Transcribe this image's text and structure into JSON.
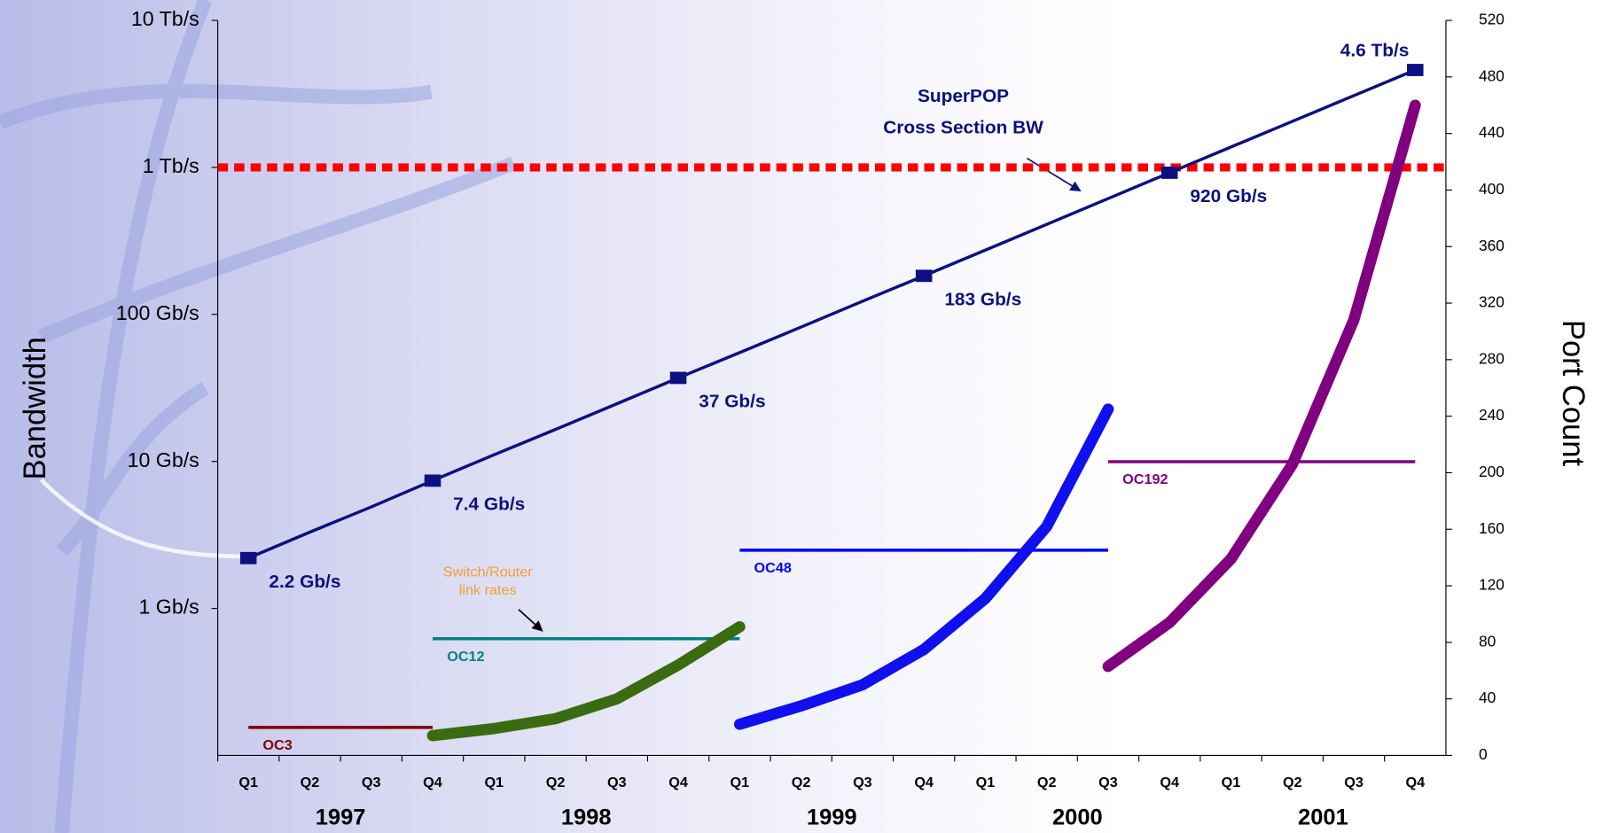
{
  "chart_data": {
    "type": "line",
    "categories": [
      "Q1",
      "Q2",
      "Q3",
      "Q4",
      "Q1",
      "Q2",
      "Q3",
      "Q4",
      "Q1",
      "Q2",
      "Q3",
      "Q4",
      "Q1",
      "Q2",
      "Q3",
      "Q4",
      "Q1",
      "Q2",
      "Q3",
      "Q4"
    ],
    "years": [
      "1997",
      "1998",
      "1999",
      "2000",
      "2001"
    ],
    "y_label": "Bandwidth",
    "y2_label": "Port Count",
    "y_scale": "log",
    "ylim": [
      0.1,
      10000
    ],
    "yticks": [
      {
        "value": 1,
        "label": "1 Gb/s"
      },
      {
        "value": 10,
        "label": "10 Gb/s"
      },
      {
        "value": 100,
        "label": "100 Gb/s"
      },
      {
        "value": 1000,
        "label": "1 Tb/s"
      },
      {
        "value": 10000,
        "label": "10 Tb/s"
      }
    ],
    "y2lim": [
      0,
      520
    ],
    "y2ticks": [
      0,
      40,
      80,
      120,
      160,
      200,
      240,
      280,
      320,
      360,
      400,
      440,
      480,
      520
    ],
    "reference_line": {
      "value": 1000,
      "color": "#ff0000"
    },
    "annotations": [
      {
        "lines": [
          "SuperPOP",
          "Cross Section BW"
        ]
      },
      {
        "lines": [
          "Switch/Router",
          "link rates"
        ]
      }
    ],
    "series": [
      {
        "color": "#0c1080",
        "markers": true,
        "values": [
          2.2,
          3.3,
          4.9,
          7.4,
          11.1,
          16.5,
          24.7,
          37,
          55,
          82,
          123,
          183,
          274,
          410,
          614,
          920,
          1376,
          2057,
          3076,
          4600
        ],
        "value_labels": [
          "2.2 Gb/s",
          null,
          null,
          "7.4 Gb/s",
          null,
          null,
          null,
          "37 Gb/s",
          null,
          null,
          null,
          "183 Gb/s",
          null,
          null,
          null,
          "920 Gb/s",
          null,
          null,
          null,
          "4.6 Tb/s"
        ]
      },
      {
        "name": "OC3",
        "color": "#800000",
        "values": [
          0.155,
          0.155,
          0.155,
          0.155,
          null,
          null,
          null,
          null,
          null,
          null,
          null,
          null,
          null,
          null,
          null,
          null,
          null,
          null,
          null,
          null
        ]
      },
      {
        "name": "OC12",
        "color": "#008080",
        "values": [
          null,
          null,
          null,
          0.622,
          0.622,
          0.622,
          0.622,
          0.622,
          0.622,
          null,
          null,
          null,
          null,
          null,
          null,
          null,
          null,
          null,
          null,
          null
        ]
      },
      {
        "name": "OC48",
        "color": "#0000ff",
        "values": [
          null,
          null,
          null,
          null,
          null,
          null,
          null,
          null,
          2.488,
          2.488,
          2.488,
          2.488,
          2.488,
          2.488,
          2.488,
          null,
          null,
          null,
          null,
          null
        ]
      },
      {
        "name": "OC192",
        "color": "#800080",
        "values": [
          null,
          null,
          null,
          null,
          null,
          null,
          null,
          null,
          null,
          null,
          null,
          null,
          null,
          null,
          9.953,
          9.953,
          9.953,
          9.953,
          9.953,
          9.953
        ]
      },
      {
        "color": "#3a6b10",
        "axis": "y2",
        "values": [
          null,
          null,
          null,
          14,
          19,
          26,
          40,
          64,
          91,
          null,
          null,
          null,
          null,
          null,
          null,
          null,
          null,
          null,
          null,
          null
        ]
      },
      {
        "color": "#1010ee",
        "axis": "y2",
        "values": [
          null,
          null,
          null,
          null,
          null,
          null,
          null,
          null,
          22,
          35,
          50,
          75,
          111,
          162,
          245,
          null,
          null,
          null,
          null,
          null
        ]
      },
      {
        "color": "#800080",
        "axis": "y2",
        "values": [
          null,
          null,
          null,
          null,
          null,
          null,
          null,
          null,
          null,
          null,
          null,
          null,
          null,
          null,
          63,
          94,
          139,
          206,
          308,
          460
        ]
      }
    ]
  }
}
